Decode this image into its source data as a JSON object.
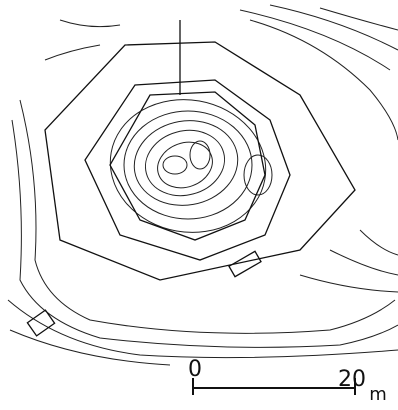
{
  "scale_bar": {
    "start_label": "0",
    "end_label": "20",
    "unit": "m"
  }
}
